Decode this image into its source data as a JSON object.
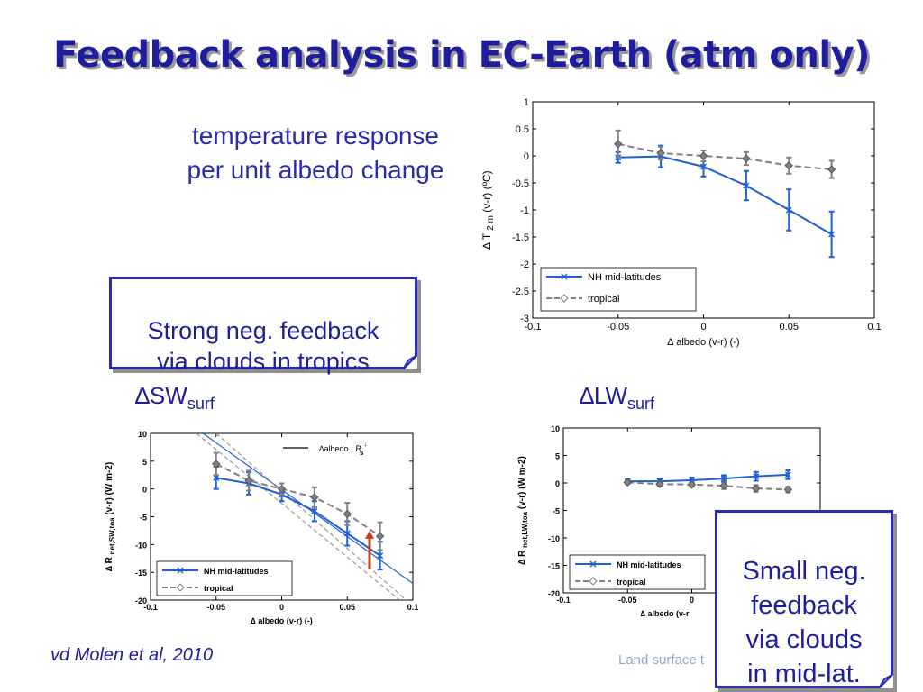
{
  "slide": {
    "title": "Feedback analysis in EC-Earth (atm only)",
    "subtitle": "temperature response\nper unit albedo change",
    "callout_left": "Strong neg. feedback\nvia clouds in tropics",
    "callout_right": "Small neg.\nfeedback\nvia clouds\nin mid-lat.",
    "label_sw": "SW",
    "label_sw_sub": "surf",
    "label_lw": "LW",
    "label_lw_sub": "surf",
    "delta_symbol": "∆",
    "citation": "vd Molen et al, 2010",
    "footer_text": "Land surface t",
    "colors": {
      "title": "#1e1e9c",
      "nh": "#1f5fd6",
      "tropical": "#808080",
      "arrow": "#c0401a"
    }
  },
  "chart_data": [
    {
      "id": "temperature",
      "type": "line",
      "xlabel": "∆ albedo (v-r) (-)",
      "ylabel": "∆ T",
      "ylabel_sub": "2 m",
      "ylabel_tail": "(v-r) (ºC)",
      "xlim": [
        -0.1,
        0.1
      ],
      "ylim": [
        -3,
        1
      ],
      "xticks": [
        -0.1,
        -0.05,
        0,
        0.05,
        0.1
      ],
      "xtick_labels": [
        "-0.1",
        "-0.05",
        "0",
        "0.05",
        "0.1"
      ],
      "yticks": [
        -3,
        -2.5,
        -2,
        -1.5,
        -1,
        -0.5,
        0,
        0.5,
        1
      ],
      "ytick_labels": [
        "-3",
        "-2.5",
        "-2",
        "-1.5",
        "-1",
        "-0.5",
        "0",
        "0.5",
        "1"
      ],
      "legend_position": "bottom-left",
      "series": [
        {
          "name": "NH mid-latitudes",
          "x": [
            -0.05,
            -0.025,
            0,
            0.025,
            0.05,
            0.075
          ],
          "y": [
            -0.03,
            -0.01,
            -0.2,
            -0.55,
            -1.0,
            -1.45
          ],
          "err": [
            0.1,
            0.2,
            0.18,
            0.27,
            0.38,
            0.42
          ]
        },
        {
          "name": "tropical",
          "x": [
            -0.05,
            -0.025,
            0,
            0.025,
            0.05,
            0.075
          ],
          "y": [
            0.22,
            0.05,
            0.0,
            -0.05,
            -0.18,
            -0.25
          ],
          "err": [
            0.25,
            0.12,
            0.1,
            0.12,
            0.15,
            0.16
          ]
        }
      ]
    },
    {
      "id": "sw",
      "type": "line",
      "xlabel": "∆ albedo (v-r) (-)",
      "ylabel": "∆ R",
      "ylabel_sub": "net,SW,toa",
      "ylabel_tail": "(v-r) (W m-2)",
      "xlim": [
        -0.1,
        0.1
      ],
      "ylim": [
        -20,
        10
      ],
      "xticks": [
        -0.1,
        -0.05,
        0,
        0.05,
        0.1
      ],
      "xtick_labels": [
        "-0.1",
        "-0.05",
        "0",
        "0.05",
        "0.1"
      ],
      "yticks": [
        -20,
        -15,
        -10,
        -5,
        0,
        5,
        10
      ],
      "ytick_labels": [
        "-20",
        "-15",
        "-10",
        "-5",
        "0",
        "5",
        "10"
      ],
      "ref_line_label": "∆albedo · R",
      "ref_line_sub": "s",
      "ref_line_sup": "↓",
      "legend_position": "bottom-left",
      "series": [
        {
          "name": "NH mid-latitudes",
          "x": [
            -0.05,
            -0.025,
            0,
            0.025,
            0.05,
            0.075
          ],
          "y": [
            2.0,
            1.0,
            -1.0,
            -4.0,
            -8.0,
            -12.0
          ],
          "err": [
            2.0,
            2.0,
            1.2,
            1.8,
            2.2,
            2.5
          ]
        },
        {
          "name": "tropical",
          "x": [
            -0.05,
            -0.025,
            0,
            0.025,
            0.05,
            0.075
          ],
          "y": [
            4.5,
            1.5,
            0.0,
            -1.5,
            -4.5,
            -8.5
          ],
          "err": [
            2.0,
            1.8,
            1.0,
            1.8,
            2.0,
            2.5
          ]
        }
      ]
    },
    {
      "id": "lw",
      "type": "line",
      "xlabel": "∆ albedo (v-r",
      "ylabel": "∆ R",
      "ylabel_sub": "net,LW,toa",
      "ylabel_tail": "(v-r) (W m-2)",
      "xlim": [
        -0.1,
        0.1
      ],
      "ylim": [
        -20,
        10
      ],
      "xticks": [
        -0.1,
        -0.05,
        0
      ],
      "xtick_labels": [
        "-0.1",
        "-0.05",
        "0"
      ],
      "yticks": [
        -20,
        -15,
        -10,
        -5,
        0,
        5,
        10
      ],
      "ytick_labels": [
        "-20",
        "-15",
        "-10",
        "-5",
        "0",
        "5",
        "10"
      ],
      "legend_position": "bottom-left",
      "series": [
        {
          "name": "NH mid-latitudes",
          "x": [
            -0.05,
            -0.025,
            0,
            0.025,
            0.05,
            0.075
          ],
          "y": [
            0.3,
            0.3,
            0.5,
            0.8,
            1.2,
            1.5
          ],
          "err": [
            0.4,
            0.5,
            0.5,
            0.6,
            0.8,
            0.8
          ]
        },
        {
          "name": "tropical",
          "x": [
            -0.05,
            -0.025,
            0,
            0.025,
            0.05,
            0.075
          ],
          "y": [
            0.1,
            -0.2,
            -0.3,
            -0.5,
            -1.0,
            -1.2
          ],
          "err": [
            0.3,
            0.4,
            0.4,
            0.6,
            0.6,
            0.5
          ]
        }
      ]
    }
  ]
}
